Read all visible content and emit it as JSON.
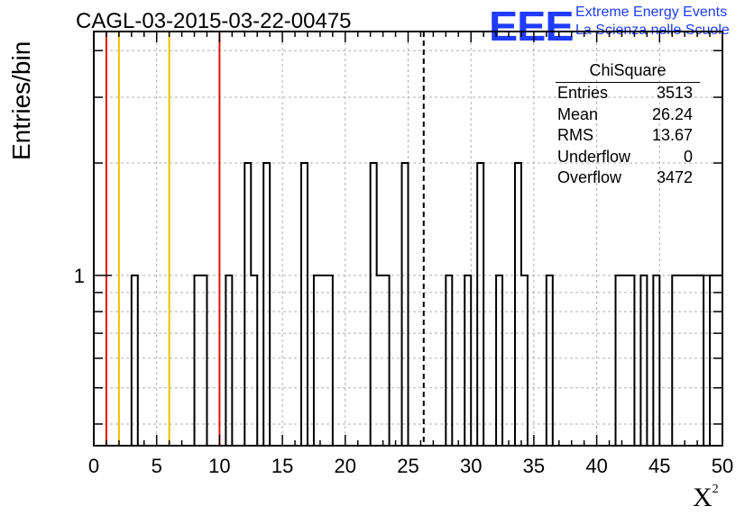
{
  "title": "CAGL-03-2015-03-22-00475",
  "logo": {
    "text": "EEE",
    "line1": "Extreme Energy Events",
    "line2": "La Scienza nelle Scuole",
    "color": "#1f3bff"
  },
  "stats": {
    "header": "ChiSquare",
    "rows": [
      {
        "label": "Entries",
        "value": "3513"
      },
      {
        "label": "Mean",
        "value": "26.24"
      },
      {
        "label": "RMS",
        "value": "13.67"
      },
      {
        "label": "Underflow",
        "value": "0"
      },
      {
        "label": "Overflow",
        "value": "3472"
      }
    ]
  },
  "chart_data": {
    "type": "histogram",
    "xlabel": "X",
    "xlabel_sup": "2",
    "ylabel": "Entries/bin",
    "xlim": [
      0,
      50
    ],
    "y_scale": "log",
    "ylim": [
      0.35,
      4.5
    ],
    "x_ticks": [
      "0",
      "5",
      "10",
      "15",
      "20",
      "25",
      "30",
      "35",
      "40",
      "45",
      "50"
    ],
    "y_tick_label": "1",
    "grid": true,
    "bin_width": 0.5,
    "bins": [
      {
        "x": 3.0,
        "y": 1
      },
      {
        "x": 8.0,
        "y": 1
      },
      {
        "x": 8.5,
        "y": 1
      },
      {
        "x": 10.5,
        "y": 1
      },
      {
        "x": 12.0,
        "y": 2
      },
      {
        "x": 12.5,
        "y": 1
      },
      {
        "x": 13.5,
        "y": 2
      },
      {
        "x": 16.5,
        "y": 2
      },
      {
        "x": 17.5,
        "y": 1
      },
      {
        "x": 18.0,
        "y": 1
      },
      {
        "x": 18.5,
        "y": 1
      },
      {
        "x": 22.0,
        "y": 2
      },
      {
        "x": 22.5,
        "y": 1
      },
      {
        "x": 23.0,
        "y": 1
      },
      {
        "x": 24.5,
        "y": 2
      },
      {
        "x": 28.0,
        "y": 1
      },
      {
        "x": 29.5,
        "y": 1
      },
      {
        "x": 30.5,
        "y": 2
      },
      {
        "x": 32.0,
        "y": 1
      },
      {
        "x": 33.5,
        "y": 2
      },
      {
        "x": 34.0,
        "y": 1
      },
      {
        "x": 36.0,
        "y": 1
      },
      {
        "x": 41.5,
        "y": 1
      },
      {
        "x": 42.0,
        "y": 1
      },
      {
        "x": 42.5,
        "y": 1
      },
      {
        "x": 43.5,
        "y": 1
      },
      {
        "x": 44.5,
        "y": 1
      },
      {
        "x": 46.0,
        "y": 1
      },
      {
        "x": 46.5,
        "y": 1
      },
      {
        "x": 47.0,
        "y": 1
      },
      {
        "x": 47.5,
        "y": 1
      },
      {
        "x": 48.0,
        "y": 1
      },
      {
        "x": 49.0,
        "y": 1
      },
      {
        "x": 49.5,
        "y": 1
      }
    ],
    "vertical_lines": [
      {
        "x": 1,
        "color": "#dd1111",
        "style": "solid"
      },
      {
        "x": 2,
        "color": "#f0c000",
        "style": "solid"
      },
      {
        "x": 6,
        "color": "#f0c000",
        "style": "solid"
      },
      {
        "x": 10,
        "color": "#dd1111",
        "style": "solid"
      },
      {
        "x": 26.24,
        "color": "#000000",
        "style": "dashed"
      }
    ]
  }
}
